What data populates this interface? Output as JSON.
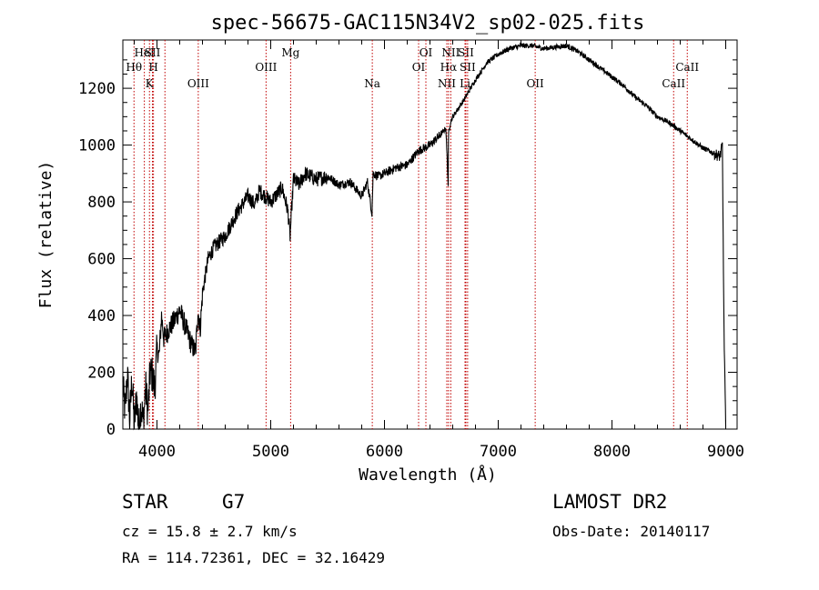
{
  "chart_data": {
    "type": "line",
    "title": "spec-56675-GAC115N34V2_sp02-025.fits",
    "xlabel": "Wavelength (Å)",
    "ylabel": "Flux (relative)",
    "xlim": [
      3700,
      9100
    ],
    "ylim": [
      0,
      1370
    ],
    "xticks": [
      4000,
      5000,
      6000,
      7000,
      8000,
      9000
    ],
    "yticks": [
      0,
      200,
      400,
      600,
      800,
      1000,
      1200
    ],
    "grid": false,
    "line_color": "#000000",
    "marker_line_color": "#c00000",
    "series": [
      {
        "x": [
          3700,
          3720,
          3740,
          3760,
          3780,
          3800,
          3820,
          3840,
          3860,
          3880,
          3900,
          3920,
          3940,
          3960,
          3980,
          4000,
          4020,
          4040,
          4060,
          4080,
          4100,
          4150,
          4200,
          4250,
          4300,
          4340,
          4360,
          4380,
          4400,
          4450,
          4500,
          4600,
          4700,
          4800,
          4860,
          4900,
          5000,
          5100,
          5150,
          5170,
          5200,
          5250,
          5300,
          5400,
          5500,
          5600,
          5700,
          5800,
          5850,
          5890,
          5900,
          5950,
          6000,
          6100,
          6200,
          6300,
          6400,
          6500,
          6540,
          6560,
          6563,
          6580,
          6600,
          6700,
          6800,
          6900,
          7000,
          7100,
          7200,
          7300,
          7400,
          7500,
          7600,
          7700,
          7800,
          7900,
          8000,
          8100,
          8200,
          8300,
          8400,
          8500,
          8600,
          8700,
          8800,
          8900,
          8950,
          8970,
          8985,
          9000
        ],
        "y": [
          150,
          60,
          200,
          30,
          180,
          10,
          120,
          0,
          90,
          20,
          150,
          60,
          200,
          190,
          140,
          280,
          260,
          400,
          320,
          330,
          350,
          380,
          420,
          360,
          300,
          270,
          420,
          350,
          480,
          600,
          640,
          680,
          760,
          820,
          790,
          840,
          800,
          850,
          770,
          680,
          880,
          860,
          900,
          880,
          890,
          860,
          870,
          820,
          870,
          760,
          900,
          890,
          900,
          920,
          930,
          980,
          1000,
          1040,
          1060,
          860,
          1040,
          1080,
          1100,
          1160,
          1230,
          1290,
          1320,
          1340,
          1350,
          1350,
          1340,
          1345,
          1350,
          1330,
          1300,
          1270,
          1240,
          1210,
          1170,
          1140,
          1100,
          1080,
          1050,
          1020,
          990,
          970,
          960,
          1000,
          350,
          0
        ],
        "name": ""
      }
    ],
    "line_markers": [
      {
        "label": "Hθ",
        "x": 3798,
        "row": 2
      },
      {
        "label": "HeI",
        "x": 3889,
        "row": 1
      },
      {
        "label": "K",
        "x": 3934,
        "row": 3
      },
      {
        "label": "SII",
        "x": 3960,
        "row": 1
      },
      {
        "label": "H",
        "x": 3969,
        "row": 2
      },
      {
        "label": "",
        "x": 4070,
        "row": 0
      },
      {
        "label": "OIII",
        "x": 4363,
        "row": 3
      },
      {
        "label": "OIII",
        "x": 4959,
        "row": 2
      },
      {
        "label": "Mg",
        "x": 5175,
        "row": 1
      },
      {
        "label": "Na",
        "x": 5893,
        "row": 3
      },
      {
        "label": "OI",
        "x": 6300,
        "row": 2
      },
      {
        "label": "OI",
        "x": 6364,
        "row": 1
      },
      {
        "label": "NII",
        "x": 6548,
        "row": 3
      },
      {
        "label": "Hα",
        "x": 6563,
        "row": 2
      },
      {
        "label": "NII",
        "x": 6583,
        "row": 1
      },
      {
        "label": "Li",
        "x": 6708,
        "row": 3
      },
      {
        "label": "SII",
        "x": 6716,
        "row": 1
      },
      {
        "label": "SII",
        "x": 6731,
        "row": 2
      },
      {
        "label": "OII",
        "x": 7325,
        "row": 3
      },
      {
        "label": "CaII",
        "x": 8542,
        "row": 3
      },
      {
        "label": "CaII",
        "x": 8662,
        "row": 2
      }
    ]
  },
  "info": {
    "object_class": "STAR",
    "subclass": "G7",
    "survey": "LAMOST DR2",
    "cz": "cz = 15.8 ± 2.7 km/s",
    "obs_date": "Obs-Date: 20140117",
    "coords": "RA = 114.72361, DEC =  32.16429"
  }
}
